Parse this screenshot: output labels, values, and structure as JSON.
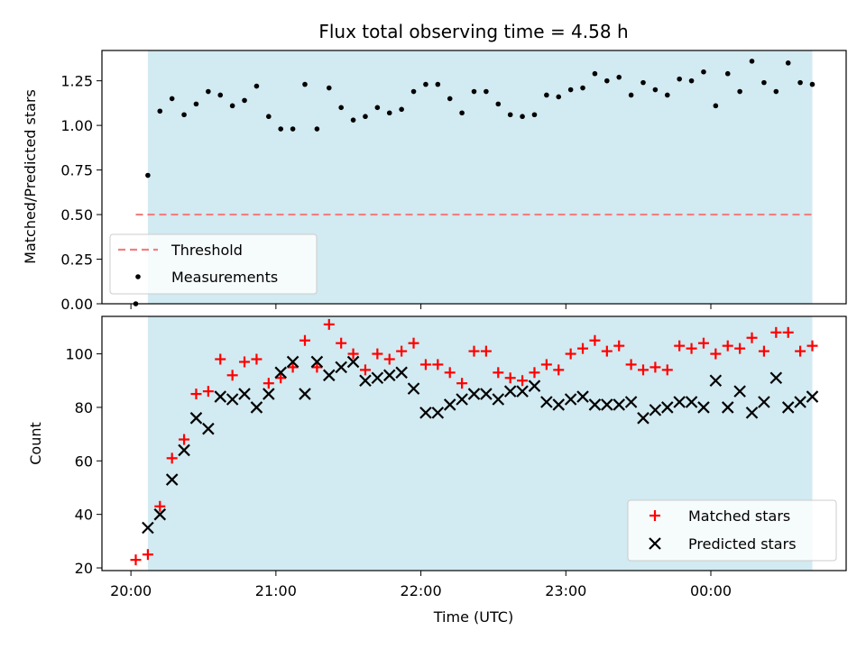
{
  "colors": {
    "span": "#add8e6",
    "threshold": "#f08080",
    "measurements": "#000000",
    "matched": "#ff0000",
    "predicted": "#000000"
  },
  "chart_data": [
    {
      "type": "scatter",
      "title": "Flux total observing time = 4.58 h",
      "xlabel": "",
      "ylabel": "Matched/Predicted stars",
      "ylim": [
        0,
        1.42
      ],
      "yticks": [
        0.0,
        0.25,
        0.5,
        0.75,
        1.0,
        1.25
      ],
      "ytick_labels": [
        "0.00",
        "0.25",
        "0.50",
        "0.75",
        "1.00",
        "1.25"
      ],
      "xlim": [
        "19:48",
        "00:56"
      ],
      "xticks": [
        "20:00",
        "21:00",
        "22:00",
        "23:00",
        "00:00"
      ],
      "observing_span": [
        "20:07",
        "00:42"
      ],
      "threshold": {
        "name": "Threshold",
        "value": 0.5,
        "x": [
          "20:02",
          "00:42"
        ]
      },
      "legend_location": "lower-left",
      "series": [
        {
          "name": "Measurements",
          "x": [
            "20:02",
            "20:07",
            "20:12",
            "20:17",
            "20:22",
            "20:27",
            "20:32",
            "20:37",
            "20:42",
            "20:47",
            "20:52",
            "20:57",
            "21:02",
            "21:07",
            "21:12",
            "21:17",
            "21:22",
            "21:27",
            "21:32",
            "21:37",
            "21:42",
            "21:47",
            "21:52",
            "21:57",
            "22:02",
            "22:07",
            "22:12",
            "22:17",
            "22:22",
            "22:27",
            "22:32",
            "22:37",
            "22:42",
            "22:47",
            "22:52",
            "22:57",
            "23:02",
            "23:07",
            "23:12",
            "23:17",
            "23:22",
            "23:27",
            "23:32",
            "23:37",
            "23:42",
            "23:47",
            "23:52",
            "23:57",
            "00:02",
            "00:07",
            "00:12",
            "00:17",
            "00:22",
            "00:27",
            "00:32",
            "00:37",
            "00:42"
          ],
          "values": [
            0.0,
            0.72,
            1.08,
            1.15,
            1.06,
            1.12,
            1.19,
            1.17,
            1.11,
            1.14,
            1.22,
            1.05,
            0.98,
            0.98,
            1.23,
            0.98,
            1.21,
            1.1,
            1.03,
            1.05,
            1.1,
            1.07,
            1.09,
            1.19,
            1.23,
            1.23,
            1.15,
            1.07,
            1.19,
            1.19,
            1.12,
            1.06,
            1.05,
            1.06,
            1.17,
            1.16,
            1.2,
            1.21,
            1.29,
            1.25,
            1.27,
            1.17,
            1.24,
            1.2,
            1.17,
            1.26,
            1.25,
            1.3,
            1.11,
            1.29,
            1.19,
            1.36,
            1.24,
            1.19,
            1.35,
            1.24,
            1.23
          ]
        }
      ]
    },
    {
      "type": "scatter",
      "title": "",
      "xlabel": "Time (UTC)",
      "ylabel": "Count",
      "ylim": [
        19,
        114
      ],
      "yticks": [
        20,
        40,
        60,
        80,
        100
      ],
      "ytick_labels": [
        "20",
        "40",
        "60",
        "80",
        "100"
      ],
      "xlim": [
        "19:48",
        "00:56"
      ],
      "xticks": [
        "20:00",
        "21:00",
        "22:00",
        "23:00",
        "00:00"
      ],
      "xtick_labels": [
        "20:00",
        "21:00",
        "22:00",
        "23:00",
        "00:00"
      ],
      "observing_span": [
        "20:07",
        "00:42"
      ],
      "legend_location": "lower-right",
      "series": [
        {
          "name": "Matched stars",
          "marker": "plus",
          "x": [
            "20:02",
            "20:07",
            "20:12",
            "20:17",
            "20:22",
            "20:27",
            "20:32",
            "20:37",
            "20:42",
            "20:47",
            "20:52",
            "20:57",
            "21:02",
            "21:07",
            "21:12",
            "21:17",
            "21:22",
            "21:27",
            "21:32",
            "21:37",
            "21:42",
            "21:47",
            "21:52",
            "21:57",
            "22:02",
            "22:07",
            "22:12",
            "22:17",
            "22:22",
            "22:27",
            "22:32",
            "22:37",
            "22:42",
            "22:47",
            "22:52",
            "22:57",
            "23:02",
            "23:07",
            "23:12",
            "23:17",
            "23:22",
            "23:27",
            "23:32",
            "23:37",
            "23:42",
            "23:47",
            "23:52",
            "23:57",
            "00:02",
            "00:07",
            "00:12",
            "00:17",
            "00:22",
            "00:27",
            "00:32",
            "00:37",
            "00:42"
          ],
          "values": [
            23,
            25,
            43,
            61,
            68,
            85,
            86,
            98,
            92,
            97,
            98,
            89,
            91,
            95,
            105,
            95,
            111,
            104,
            100,
            94,
            100,
            98,
            101,
            104,
            96,
            96,
            93,
            89,
            101,
            101,
            93,
            91,
            90,
            93,
            96,
            94,
            100,
            102,
            105,
            101,
            103,
            96,
            94,
            95,
            94,
            103,
            102,
            104,
            100,
            103,
            102,
            106,
            101,
            108,
            108,
            101,
            103
          ]
        },
        {
          "name": "Predicted stars",
          "marker": "x",
          "x": [
            "20:07",
            "20:12",
            "20:17",
            "20:22",
            "20:27",
            "20:32",
            "20:37",
            "20:42",
            "20:47",
            "20:52",
            "20:57",
            "21:02",
            "21:07",
            "21:12",
            "21:17",
            "21:22",
            "21:27",
            "21:32",
            "21:37",
            "21:42",
            "21:47",
            "21:52",
            "21:57",
            "22:02",
            "22:07",
            "22:12",
            "22:17",
            "22:22",
            "22:27",
            "22:32",
            "22:37",
            "22:42",
            "22:47",
            "22:52",
            "22:57",
            "23:02",
            "23:07",
            "23:12",
            "23:17",
            "23:22",
            "23:27",
            "23:32",
            "23:37",
            "23:42",
            "23:47",
            "23:52",
            "23:57",
            "00:02",
            "00:07",
            "00:12",
            "00:17",
            "00:22",
            "00:27",
            "00:32",
            "00:37",
            "00:42"
          ],
          "values": [
            35,
            40,
            53,
            64,
            76,
            72,
            84,
            83,
            85,
            80,
            85,
            93,
            97,
            85,
            97,
            92,
            95,
            97,
            90,
            91,
            92,
            93,
            87,
            78,
            78,
            81,
            83,
            85,
            85,
            83,
            86,
            86,
            88,
            82,
            81,
            83,
            84,
            81,
            81,
            81,
            82,
            76,
            79,
            80,
            82,
            82,
            80,
            90,
            80,
            86,
            78,
            82,
            91,
            80,
            82,
            84
          ]
        }
      ]
    }
  ]
}
